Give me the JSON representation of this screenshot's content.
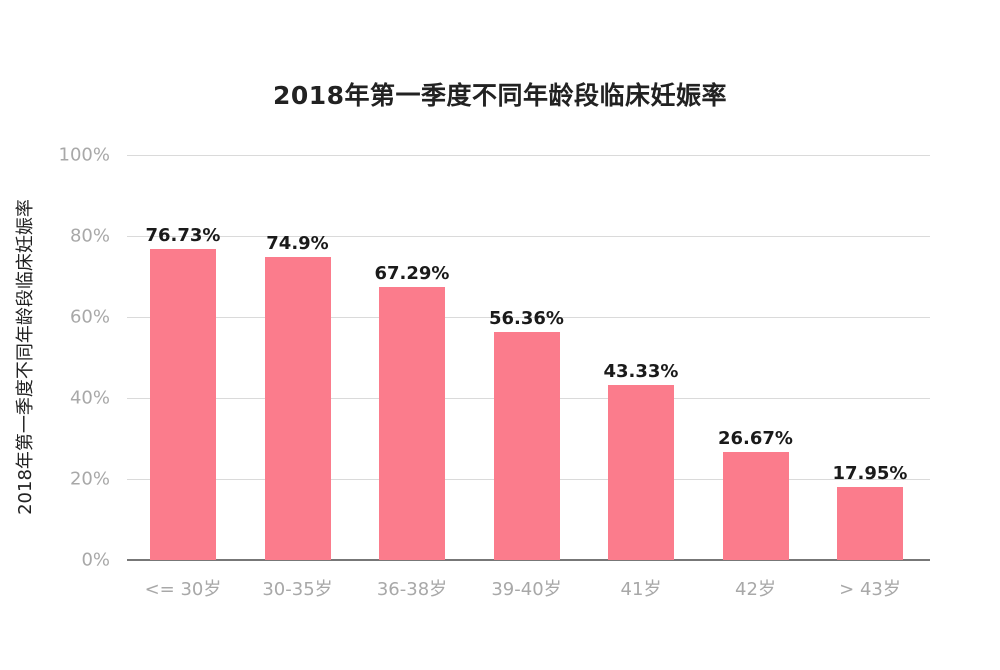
{
  "chart_data": {
    "type": "bar",
    "title": "2018年第一季度不同年龄段临床妊娠率",
    "xlabel": "",
    "ylabel": "2018年第一季度不同年龄段临床妊娠率",
    "categories": [
      "<= 30岁",
      "30-35岁",
      "36-38岁",
      "39-40岁",
      "41岁",
      "42岁",
      "> 43岁"
    ],
    "values": [
      76.73,
      74.9,
      67.29,
      56.36,
      43.33,
      26.67,
      17.95
    ],
    "value_labels": [
      "76.73%",
      "74.9%",
      "67.29%",
      "56.36%",
      "43.33%",
      "26.67%",
      "17.95%"
    ],
    "ylim": [
      0,
      100
    ],
    "yticks": [
      "0%",
      "20%",
      "40%",
      "60%",
      "80%",
      "100%"
    ],
    "grid": true,
    "legend": null,
    "bar_color": "#fb7c8c"
  }
}
